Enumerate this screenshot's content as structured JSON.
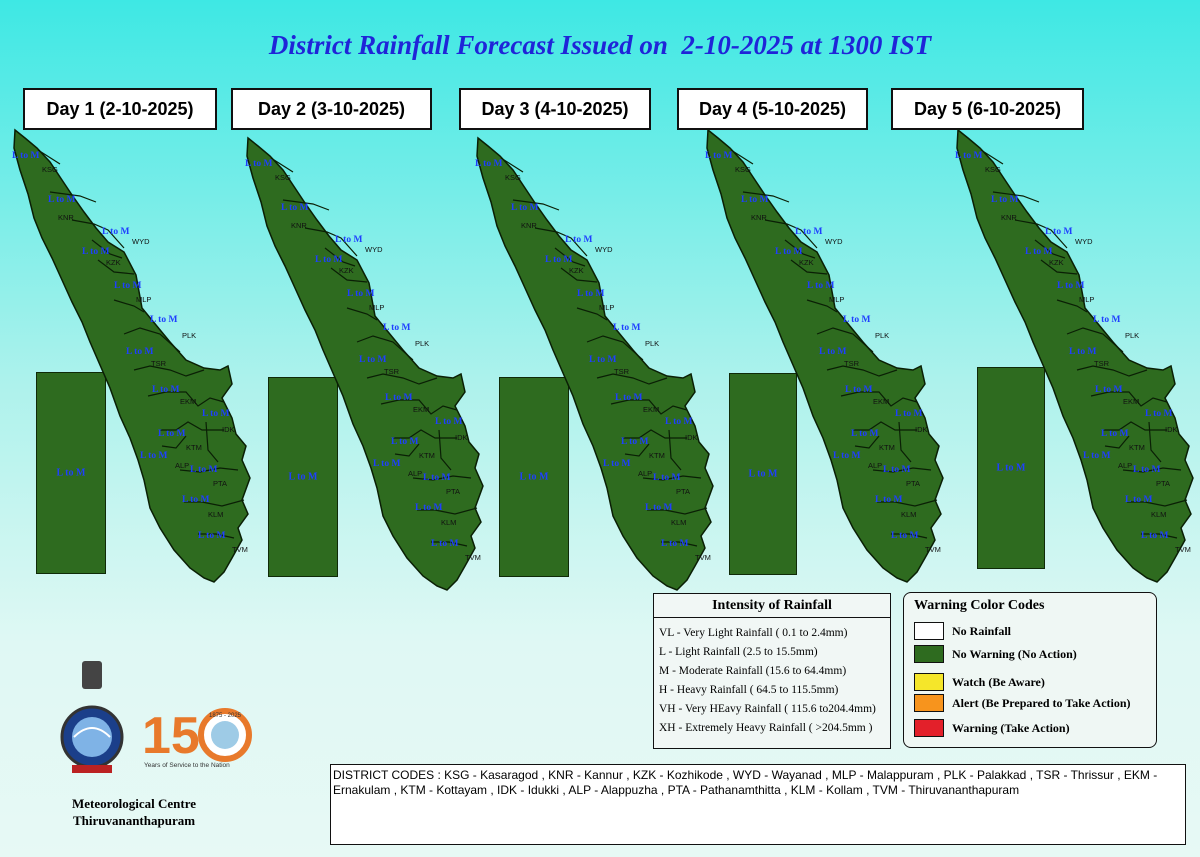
{
  "title": "District Rainfall Forecast Issued on  2-10-2025 at 1300 IST",
  "days": [
    {
      "label": "Day 1 (2-10-2025)",
      "offshore_label": "L to M"
    },
    {
      "label": "Day 2 (3-10-2025)",
      "offshore_label": "L to M"
    },
    {
      "label": "Day 3 (4-10-2025)",
      "offshore_label": "L to M"
    },
    {
      "label": "Day 4 (5-10-2025)",
      "offshore_label": "L to M"
    },
    {
      "label": "Day 5 (6-10-2025)",
      "offshore_label": "L to M"
    }
  ],
  "districts": [
    {
      "code": "KSG",
      "forecast": "L to M"
    },
    {
      "code": "KNR",
      "forecast": "L to M"
    },
    {
      "code": "WYD",
      "forecast": "L to M"
    },
    {
      "code": "KZK",
      "forecast": "L to M"
    },
    {
      "code": "MLP",
      "forecast": "L to M"
    },
    {
      "code": "PLK",
      "forecast": "L to M"
    },
    {
      "code": "TSR",
      "forecast": "L to M"
    },
    {
      "code": "EKM",
      "forecast": "L to M"
    },
    {
      "code": "IDK",
      "forecast": "L to M"
    },
    {
      "code": "KTM",
      "forecast": "L to M"
    },
    {
      "code": "ALP",
      "forecast": "L to M"
    },
    {
      "code": "PTA",
      "forecast": "L to M"
    },
    {
      "code": "KLM",
      "forecast": "L to M"
    },
    {
      "code": "TVM",
      "forecast": "L to M"
    }
  ],
  "map_fill_color": "#2e6b1f",
  "intensity_legend": {
    "title": "Intensity of Rainfall",
    "items": [
      "VL - Very Light Rainfall ( 0.1 to 2.4mm)",
      "L  - Light Rainfall (2.5 to 15.5mm)",
      "M  - Moderate Rainfall (15.6 to 64.4mm)",
      "H  - Heavy Rainfall ( 64.5 to 115.5mm)",
      "VH - Very HEavy Rainfall ( 115.6 to204.4mm)",
      "XH - Extremely Heavy Rainfall ( >204.5mm )"
    ]
  },
  "warning_legend": {
    "title": "Warning Color Codes",
    "items": [
      {
        "label": "No Rainfall",
        "color": "#ffffff"
      },
      {
        "label": "No Warning (No Action)",
        "color": "#2e6b1f"
      },
      {
        "label": "Watch (Be Aware)",
        "color": "#f5e62a"
      },
      {
        "label": "Alert (Be Prepared to Take Action)",
        "color": "#f7941d"
      },
      {
        "label": "Warning (Take Action)",
        "color": "#e3202a"
      }
    ]
  },
  "district_codes_text": "DISTRICT CODES : KSG - Kasaragod , KNR - Kannur , KZK - Kozhikode , WYD - Wayanad , MLP - Malappuram , PLK - Palakkad , TSR - Thrissur , EKM - Ernakulam , KTM - Kottayam , IDK - Idukki , ALP - Alappuzha ,      PTA - Pathanamthitta , KLM - Kollam , TVM - Thiruvananthapuram",
  "logo_150": {
    "number": "150",
    "caption": "Years of Service to the Nation",
    "years": "1875 - 2025"
  },
  "organization": {
    "line1": "Meteorological Centre",
    "line2": "Thiruvananthapuram"
  }
}
